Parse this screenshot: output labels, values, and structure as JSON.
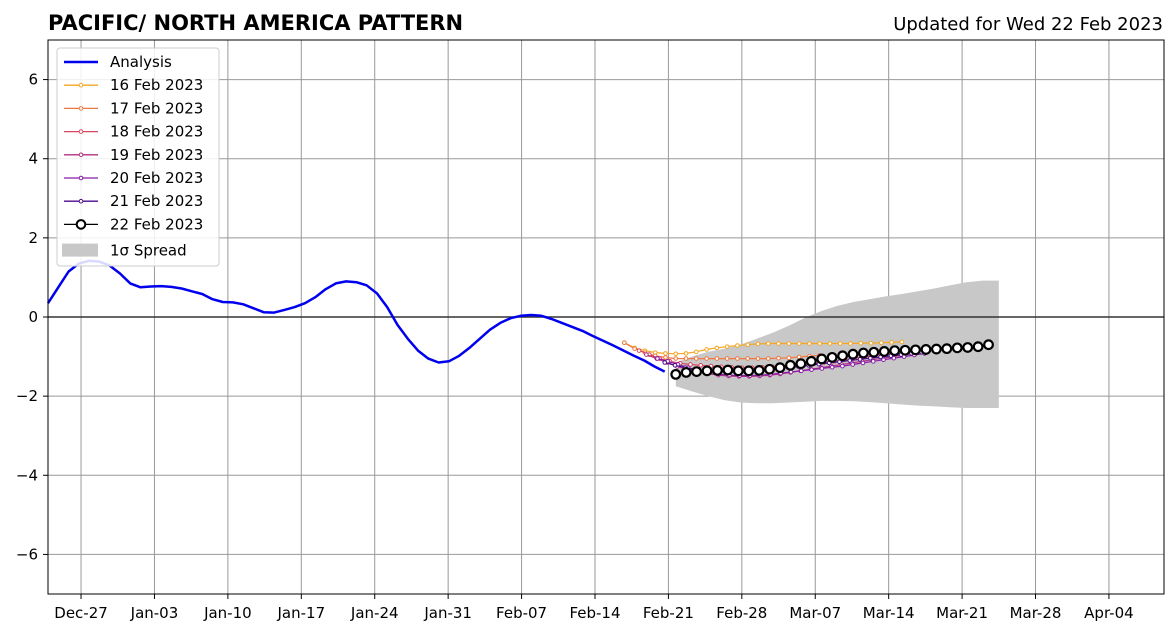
{
  "title": "PACIFIC/ NORTH AMERICA PATTERN",
  "updated": "Updated for Wed 22 Feb 2023",
  "colors": {
    "analysis": "#0000ee",
    "spread": "#c8c8c8",
    "grid": "#999999"
  },
  "chart_data": {
    "type": "line",
    "xlabel": "",
    "ylabel": "",
    "ylim": [
      -7,
      7
    ],
    "xlim_days": [
      -31.5,
      120.5
    ],
    "x_ticks": [
      {
        "label": "Dec-27",
        "day": -27
      },
      {
        "label": "Jan-03",
        "day": -17
      },
      {
        "label": "Jan-10",
        "day": -7
      },
      {
        "label": "Jan-17",
        "day": 3
      },
      {
        "label": "Jan-24",
        "day": 13
      },
      {
        "label": "Jan-31",
        "day": 23
      },
      {
        "label": "Feb-07",
        "day": 33
      },
      {
        "label": "Feb-14",
        "day": 43
      },
      {
        "label": "Feb-21",
        "day": 53
      },
      {
        "label": "Feb-28",
        "day": 63
      },
      {
        "label": "Mar-07",
        "day": 73
      },
      {
        "label": "Mar-14",
        "day": 83
      },
      {
        "label": "Mar-21",
        "day": 93
      },
      {
        "label": "Mar-28",
        "day": 103
      },
      {
        "label": "Apr-04",
        "day": 113
      }
    ],
    "y_ticks": [
      {
        "label": "6",
        "value": 6
      },
      {
        "label": "4",
        "value": 4
      },
      {
        "label": "2",
        "value": 2
      },
      {
        "label": "0",
        "value": 0
      },
      {
        "label": "−2",
        "value": -2
      },
      {
        "label": "−4",
        "value": -4
      },
      {
        "label": "−6",
        "value": -6
      }
    ],
    "legend_position": "top-left",
    "grid": true,
    "analysis": {
      "name": "Analysis",
      "start_day": -31.5,
      "step_days": 1.4,
      "values": [
        0.35,
        0.75,
        1.15,
        1.35,
        1.42,
        1.4,
        1.3,
        1.1,
        0.85,
        0.75,
        0.77,
        0.78,
        0.76,
        0.72,
        0.65,
        0.58,
        0.45,
        0.38,
        0.37,
        0.32,
        0.22,
        0.12,
        0.11,
        0.18,
        0.25,
        0.35,
        0.5,
        0.7,
        0.85,
        0.9,
        0.88,
        0.8,
        0.6,
        0.25,
        -0.2,
        -0.55,
        -0.85,
        -1.05,
        -1.15,
        -1.12,
        -0.98,
        -0.78,
        -0.55,
        -0.32,
        -0.15,
        -0.03,
        0.03,
        0.05,
        0.03,
        -0.05,
        -0.15,
        -0.25,
        -0.35,
        -0.48,
        -0.6,
        -0.72,
        -0.85,
        -0.98,
        -1.1,
        -1.25,
        -1.38
      ]
    },
    "series": [
      {
        "name": "16 Feb 2023",
        "color": "#f5a623",
        "start_day": 47,
        "step_days": 1.4,
        "values": [
          -0.65,
          -0.78,
          -0.85,
          -0.9,
          -0.92,
          -0.93,
          -0.92,
          -0.88,
          -0.82,
          -0.78,
          -0.75,
          -0.72,
          -0.7,
          -0.68,
          -0.67,
          -0.67,
          -0.67,
          -0.67,
          -0.67,
          -0.67,
          -0.67,
          -0.67,
          -0.67,
          -0.66,
          -0.66,
          -0.65,
          -0.64,
          -0.63
        ]
      },
      {
        "name": "17 Feb 2023",
        "color": "#ee7942",
        "start_day": 47,
        "step_days": 1.4,
        "values": [
          -0.65,
          -0.8,
          -0.9,
          -0.98,
          -1.02,
          -1.05,
          -1.05,
          -1.05,
          -1.05,
          -1.05,
          -1.05,
          -1.05,
          -1.05,
          -1.05,
          -1.05,
          -1.04,
          -1.03,
          -1.01,
          -0.99,
          -0.97
        ]
      },
      {
        "name": "18 Feb 2023",
        "color": "#d9465e",
        "start_day": 49,
        "step_days": 1.4,
        "values": [
          -0.85,
          -0.95,
          -1.05,
          -1.12,
          -1.17,
          -1.2,
          -1.22,
          -1.24,
          -1.26,
          -1.27,
          -1.28,
          -1.28,
          -1.27,
          -1.26,
          -1.24,
          -1.22,
          -1.2,
          -1.18,
          -1.15,
          -1.12,
          -1.08,
          -1.04,
          -1.0,
          -0.96,
          -0.93,
          -0.9
        ]
      },
      {
        "name": "19 Feb 2023",
        "color": "#b03080",
        "start_day": 50,
        "step_days": 1.4,
        "values": [
          -0.95,
          -1.05,
          -1.15,
          -1.25,
          -1.32,
          -1.38,
          -1.43,
          -1.47,
          -1.49,
          -1.5,
          -1.5,
          -1.49,
          -1.47,
          -1.44,
          -1.4,
          -1.36,
          -1.32,
          -1.28,
          -1.24,
          -1.2,
          -1.16,
          -1.12,
          -1.08,
          -1.04,
          -1.0,
          -0.96,
          -0.92
        ]
      },
      {
        "name": "20 Feb 2023",
        "color": "#8a1aa8",
        "start_day": 51.5,
        "step_days": 1.4,
        "values": [
          -1.05,
          -1.12,
          -1.2,
          -1.28,
          -1.35,
          -1.4,
          -1.44,
          -1.47,
          -1.48,
          -1.48,
          -1.47,
          -1.45,
          -1.42,
          -1.39,
          -1.36,
          -1.33,
          -1.3,
          -1.27,
          -1.24,
          -1.2,
          -1.16,
          -1.12,
          -1.08,
          -1.04,
          -1.0,
          -0.96,
          -0.92
        ]
      },
      {
        "name": "21 Feb 2023",
        "color": "#4b0a8c",
        "start_day": 52.5,
        "step_days": 1.4,
        "values": [
          -1.15,
          -1.22,
          -1.28,
          -1.33,
          -1.36,
          -1.38,
          -1.39,
          -1.39,
          -1.38,
          -1.36,
          -1.34,
          -1.31,
          -1.28,
          -1.25,
          -1.22,
          -1.19,
          -1.16,
          -1.13,
          -1.1,
          -1.07,
          -1.04,
          -1.01,
          -0.98,
          -0.95,
          -0.92,
          -0.89
        ]
      },
      {
        "name": "22 Feb 2023",
        "color": "#000000",
        "start_day": 54,
        "step_days": 1.42,
        "values": [
          -1.45,
          -1.4,
          -1.38,
          -1.36,
          -1.35,
          -1.34,
          -1.36,
          -1.36,
          -1.35,
          -1.32,
          -1.28,
          -1.22,
          -1.18,
          -1.12,
          -1.06,
          -1.02,
          -0.98,
          -0.94,
          -0.91,
          -0.89,
          -0.87,
          -0.85,
          -0.84,
          -0.83,
          -0.82,
          -0.81,
          -0.8,
          -0.78,
          -0.77,
          -0.75,
          -0.7
        ]
      }
    ],
    "spread": {
      "name": "1σ Spread",
      "start_day": 54,
      "step_days": 2.2,
      "upper": [
        -1.15,
        -1.0,
        -0.88,
        -0.8,
        -0.7,
        -0.55,
        -0.4,
        -0.22,
        -0.02,
        0.15,
        0.28,
        0.38,
        0.45,
        0.52,
        0.58,
        0.65,
        0.72,
        0.8,
        0.88,
        0.92,
        0.92
      ],
      "lower": [
        -1.75,
        -1.88,
        -2.0,
        -2.1,
        -2.16,
        -2.18,
        -2.18,
        -2.16,
        -2.14,
        -2.12,
        -2.12,
        -2.13,
        -2.15,
        -2.18,
        -2.21,
        -2.24,
        -2.26,
        -2.28,
        -2.3,
        -2.3,
        -2.3
      ]
    }
  }
}
